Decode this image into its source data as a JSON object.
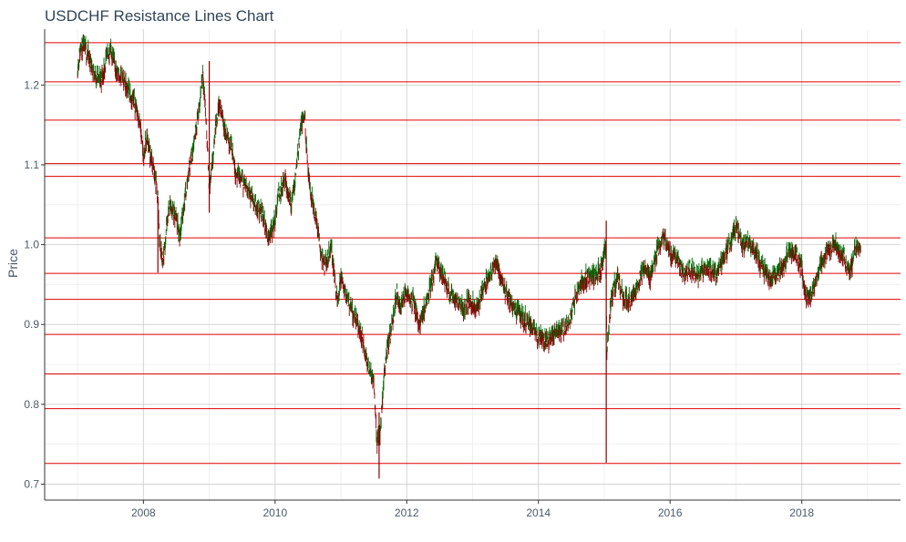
{
  "chart_data": {
    "type": "line",
    "title": "USDCHF Resistance Lines Chart",
    "xlabel": "",
    "ylabel": "Price",
    "x_ticks": [
      "2008",
      "2010",
      "2012",
      "2014",
      "2016",
      "2018"
    ],
    "y_ticks": [
      "0.7",
      "0.8",
      "0.9",
      "1.0",
      "1.1",
      "1.2"
    ],
    "xlim": [
      2006.5,
      2019.5
    ],
    "ylim": [
      0.68,
      1.27
    ],
    "grid": true,
    "colors": {
      "up": "#006400",
      "down": "#8b0000",
      "resistance": "#e00000",
      "grid": "#d4d4d4",
      "axis": "#333333"
    },
    "resistance_levels": [
      1.253,
      1.204,
      1.156,
      1.1015,
      1.0855,
      1.0085,
      0.964,
      0.9315,
      0.8875,
      0.838,
      0.7945,
      0.726
    ],
    "series": [
      {
        "values": [
          [
            2007.0,
            1.22
          ],
          [
            2007.05,
            1.25
          ],
          [
            2007.15,
            1.24
          ],
          [
            2007.25,
            1.215
          ],
          [
            2007.35,
            1.205
          ],
          [
            2007.45,
            1.235
          ],
          [
            2007.5,
            1.245
          ],
          [
            2007.6,
            1.215
          ],
          [
            2007.7,
            1.205
          ],
          [
            2007.8,
            1.19
          ],
          [
            2007.9,
            1.17
          ],
          [
            2007.95,
            1.15
          ],
          [
            2008.0,
            1.11
          ],
          [
            2008.05,
            1.135
          ],
          [
            2008.15,
            1.095
          ],
          [
            2008.22,
            1.06
          ],
          [
            2008.25,
            1.0
          ],
          [
            2008.3,
            0.98
          ],
          [
            2008.35,
            1.02
          ],
          [
            2008.4,
            1.05
          ],
          [
            2008.5,
            1.03
          ],
          [
            2008.55,
            1.01
          ],
          [
            2008.6,
            1.04
          ],
          [
            2008.7,
            1.1
          ],
          [
            2008.75,
            1.12
          ],
          [
            2008.8,
            1.15
          ],
          [
            2008.85,
            1.17
          ],
          [
            2008.9,
            1.22
          ],
          [
            2008.95,
            1.16
          ],
          [
            2009.0,
            1.07
          ],
          [
            2009.05,
            1.1
          ],
          [
            2009.1,
            1.15
          ],
          [
            2009.15,
            1.18
          ],
          [
            2009.25,
            1.14
          ],
          [
            2009.35,
            1.12
          ],
          [
            2009.4,
            1.09
          ],
          [
            2009.5,
            1.08
          ],
          [
            2009.6,
            1.07
          ],
          [
            2009.7,
            1.05
          ],
          [
            2009.8,
            1.04
          ],
          [
            2009.9,
            1.01
          ],
          [
            2010.0,
            1.03
          ],
          [
            2010.05,
            1.06
          ],
          [
            2010.15,
            1.08
          ],
          [
            2010.25,
            1.05
          ],
          [
            2010.3,
            1.08
          ],
          [
            2010.35,
            1.12
          ],
          [
            2010.4,
            1.15
          ],
          [
            2010.45,
            1.16
          ],
          [
            2010.5,
            1.09
          ],
          [
            2010.55,
            1.06
          ],
          [
            2010.6,
            1.04
          ],
          [
            2010.7,
            0.99
          ],
          [
            2010.75,
            0.97
          ],
          [
            2010.85,
            1.0
          ],
          [
            2010.9,
            0.96
          ],
          [
            2010.95,
            0.93
          ],
          [
            2011.0,
            0.96
          ],
          [
            2011.1,
            0.93
          ],
          [
            2011.2,
            0.91
          ],
          [
            2011.3,
            0.89
          ],
          [
            2011.4,
            0.85
          ],
          [
            2011.5,
            0.83
          ],
          [
            2011.55,
            0.75
          ],
          [
            2011.6,
            0.77
          ],
          [
            2011.65,
            0.83
          ],
          [
            2011.7,
            0.87
          ],
          [
            2011.8,
            0.91
          ],
          [
            2011.85,
            0.94
          ],
          [
            2011.9,
            0.92
          ],
          [
            2012.0,
            0.94
          ],
          [
            2012.1,
            0.93
          ],
          [
            2012.2,
            0.9
          ],
          [
            2012.3,
            0.93
          ],
          [
            2012.4,
            0.96
          ],
          [
            2012.45,
            0.98
          ],
          [
            2012.55,
            0.96
          ],
          [
            2012.65,
            0.94
          ],
          [
            2012.75,
            0.93
          ],
          [
            2012.85,
            0.92
          ],
          [
            2012.95,
            0.93
          ],
          [
            2013.05,
            0.92
          ],
          [
            2013.15,
            0.94
          ],
          [
            2013.25,
            0.96
          ],
          [
            2013.35,
            0.98
          ],
          [
            2013.45,
            0.95
          ],
          [
            2013.55,
            0.93
          ],
          [
            2013.65,
            0.92
          ],
          [
            2013.75,
            0.91
          ],
          [
            2013.85,
            0.9
          ],
          [
            2013.95,
            0.89
          ],
          [
            2014.05,
            0.88
          ],
          [
            2014.15,
            0.88
          ],
          [
            2014.25,
            0.89
          ],
          [
            2014.35,
            0.89
          ],
          [
            2014.45,
            0.9
          ],
          [
            2014.55,
            0.93
          ],
          [
            2014.65,
            0.95
          ],
          [
            2014.75,
            0.96
          ],
          [
            2014.85,
            0.96
          ],
          [
            2014.95,
            0.97
          ],
          [
            2015.02,
            1.0
          ],
          [
            2015.04,
            0.86
          ],
          [
            2015.1,
            0.93
          ],
          [
            2015.2,
            0.96
          ],
          [
            2015.3,
            0.93
          ],
          [
            2015.4,
            0.93
          ],
          [
            2015.5,
            0.95
          ],
          [
            2015.6,
            0.97
          ],
          [
            2015.7,
            0.96
          ],
          [
            2015.8,
            0.99
          ],
          [
            2015.9,
            1.01
          ],
          [
            2016.0,
            0.99
          ],
          [
            2016.1,
            0.98
          ],
          [
            2016.2,
            0.96
          ],
          [
            2016.3,
            0.97
          ],
          [
            2016.4,
            0.96
          ],
          [
            2016.5,
            0.97
          ],
          [
            2016.6,
            0.97
          ],
          [
            2016.7,
            0.96
          ],
          [
            2016.8,
            0.98
          ],
          [
            2016.9,
            1.0
          ],
          [
            2017.0,
            1.02
          ],
          [
            2017.1,
            1.0
          ],
          [
            2017.2,
            1.0
          ],
          [
            2017.3,
            0.99
          ],
          [
            2017.4,
            0.97
          ],
          [
            2017.5,
            0.96
          ],
          [
            2017.6,
            0.96
          ],
          [
            2017.7,
            0.97
          ],
          [
            2017.8,
            0.99
          ],
          [
            2017.9,
            0.99
          ],
          [
            2018.0,
            0.97
          ],
          [
            2018.05,
            0.94
          ],
          [
            2018.1,
            0.93
          ],
          [
            2018.2,
            0.95
          ],
          [
            2018.3,
            0.98
          ],
          [
            2018.4,
            0.99
          ],
          [
            2018.5,
            1.0
          ],
          [
            2018.6,
            0.99
          ],
          [
            2018.7,
            0.97
          ],
          [
            2018.75,
            0.97
          ],
          [
            2018.8,
            0.99
          ],
          [
            2018.85,
            1.0
          ],
          [
            2018.9,
            1.0
          ]
        ]
      }
    ],
    "spikes": [
      {
        "x": 2008.22,
        "low": 0.965,
        "high": 1.06
      },
      {
        "x": 2009.0,
        "low": 1.04,
        "high": 1.23
      },
      {
        "x": 2011.58,
        "low": 0.707,
        "high": 0.79
      },
      {
        "x": 2015.03,
        "low": 0.727,
        "high": 1.03
      }
    ]
  }
}
